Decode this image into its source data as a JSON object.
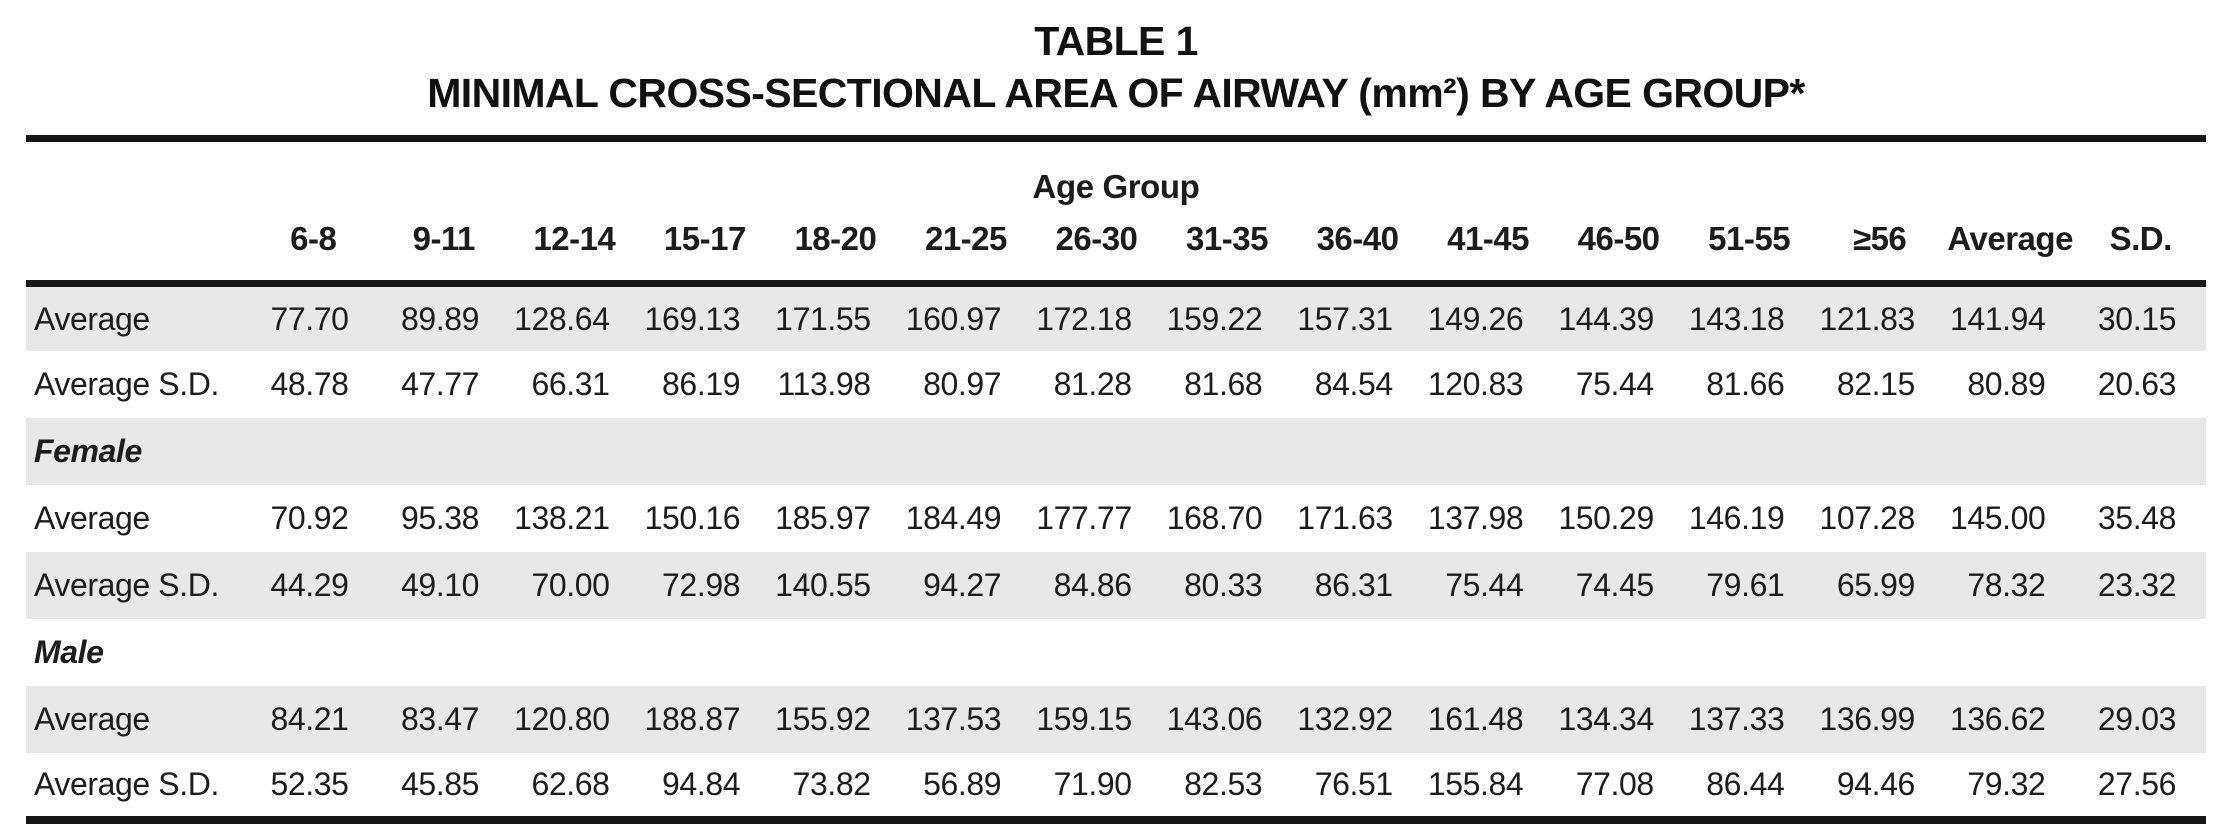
{
  "page": {
    "background": "#ffffff",
    "text_color": "#1c1c1c",
    "rule_color": "#161616",
    "shade_color": "#e8e8e8"
  },
  "table": {
    "title_line1": "TABLE 1",
    "title_line2": "MINIMAL CROSS-SECTIONAL AREA OF AIRWAY (mm²) BY AGE GROUP*",
    "age_group_label": "Age Group",
    "columns": [
      "6-8",
      "9-11",
      "12-14",
      "15-17",
      "18-20",
      "21-25",
      "26-30",
      "31-35",
      "36-40",
      "41-45",
      "46-50",
      "51-55",
      "≥56",
      "Average",
      "S.D."
    ],
    "rows": [
      {
        "label": "Average",
        "type": "data",
        "shaded": true,
        "values": [
          "77.70",
          "89.89",
          "128.64",
          "169.13",
          "171.55",
          "160.97",
          "172.18",
          "159.22",
          "157.31",
          "149.26",
          "144.39",
          "143.18",
          "121.83",
          "141.94",
          "30.15"
        ]
      },
      {
        "label": "Average S.D.",
        "type": "data",
        "shaded": false,
        "values": [
          "48.78",
          "47.77",
          "66.31",
          "86.19",
          "113.98",
          "80.97",
          "81.28",
          "81.68",
          "84.54",
          "120.83",
          "75.44",
          "81.66",
          "82.15",
          "80.89",
          "20.63"
        ]
      },
      {
        "label": "Female",
        "type": "section",
        "shaded": true,
        "values": []
      },
      {
        "label": "Average",
        "type": "data",
        "shaded": false,
        "values": [
          "70.92",
          "95.38",
          "138.21",
          "150.16",
          "185.97",
          "184.49",
          "177.77",
          "168.70",
          "171.63",
          "137.98",
          "150.29",
          "146.19",
          "107.28",
          "145.00",
          "35.48"
        ]
      },
      {
        "label": "Average S.D.",
        "type": "data",
        "shaded": true,
        "values": [
          "44.29",
          "49.10",
          "70.00",
          "72.98",
          "140.55",
          "94.27",
          "84.86",
          "80.33",
          "86.31",
          "75.44",
          "74.45",
          "79.61",
          "65.99",
          "78.32",
          "23.32"
        ]
      },
      {
        "label": "Male",
        "type": "section",
        "shaded": false,
        "values": []
      },
      {
        "label": "Average",
        "type": "data",
        "shaded": true,
        "values": [
          "84.21",
          "83.47",
          "120.80",
          "188.87",
          "155.92",
          "137.53",
          "159.15",
          "143.06",
          "132.92",
          "161.48",
          "134.34",
          "137.33",
          "136.99",
          "136.62",
          "29.03"
        ]
      },
      {
        "label": "Average S.D.",
        "type": "data",
        "shaded": false,
        "values": [
          "52.35",
          "45.85",
          "62.68",
          "94.84",
          "73.82",
          "56.89",
          "71.90",
          "82.53",
          "76.51",
          "155.84",
          "77.08",
          "86.44",
          "94.46",
          "79.32",
          "27.56"
        ]
      }
    ]
  }
}
